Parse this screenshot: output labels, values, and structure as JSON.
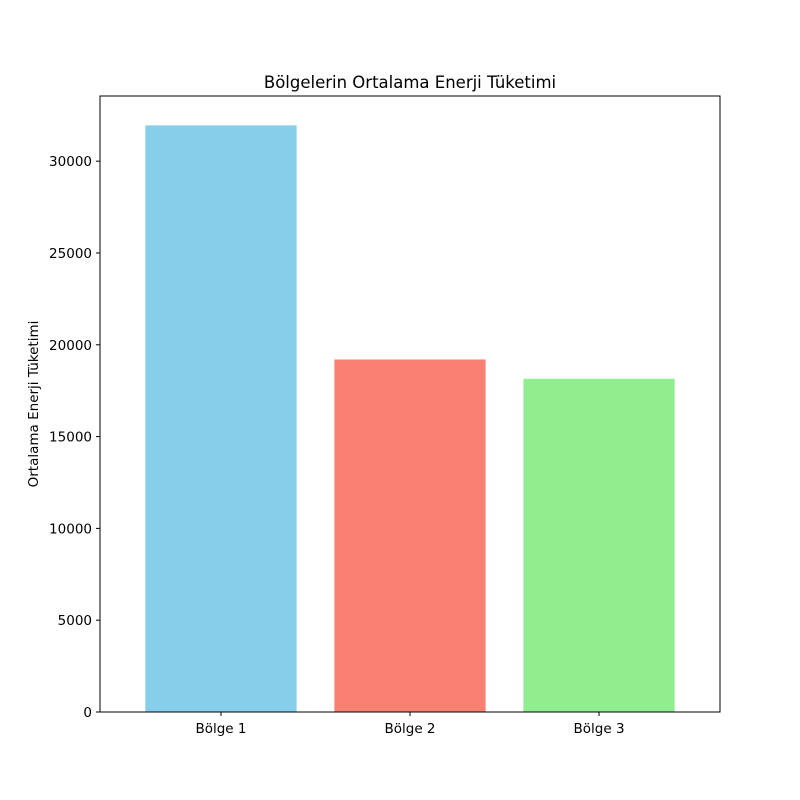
{
  "chart_data": {
    "type": "bar",
    "title": "Bölgelerin Ortalama Enerji Tüketimi",
    "xlabel": "",
    "ylabel": "Ortalama Enerji Tüketimi",
    "categories": [
      "Bölge 1",
      "Bölge 2",
      "Bölge 3"
    ],
    "values": [
      31950,
      19200,
      18150
    ],
    "colors": [
      "#87ceeb",
      "#fa8072",
      "#90ee90"
    ],
    "ylim": [
      0,
      33550
    ],
    "yticks": [
      0,
      5000,
      10000,
      15000,
      20000,
      25000,
      30000
    ],
    "grid": false,
    "legend": "none"
  }
}
